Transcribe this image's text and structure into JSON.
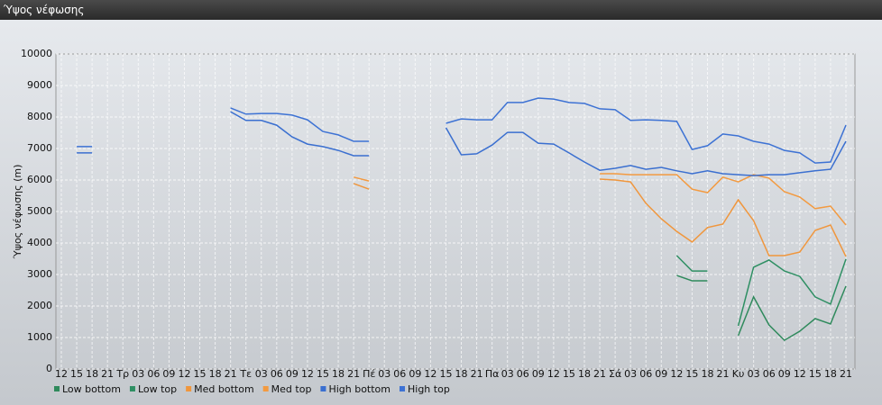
{
  "window": {
    "title": "Ύψος νέφωσης"
  },
  "chart_data": {
    "type": "line",
    "y_label": "Ύψος νέφωσης (m)",
    "categories": [
      "12",
      "15",
      "18",
      "21",
      "Τρ",
      "03",
      "06",
      "09",
      "12",
      "15",
      "18",
      "21",
      "Τε",
      "03",
      "06",
      "09",
      "12",
      "15",
      "18",
      "21",
      "Πέ",
      "03",
      "06",
      "09",
      "12",
      "15",
      "18",
      "21",
      "Πα",
      "03",
      "06",
      "09",
      "12",
      "15",
      "18",
      "21",
      "Σά",
      "03",
      "06",
      "09",
      "12",
      "15",
      "18",
      "21",
      "Κυ",
      "03",
      "06",
      "09",
      "12",
      "15",
      "18",
      "21"
    ],
    "ylim": [
      0,
      10000
    ],
    "yticks": [
      0,
      1000,
      2000,
      3000,
      4000,
      5000,
      6000,
      7000,
      8000,
      9000,
      10000
    ],
    "grid": true,
    "series": [
      {
        "name": "Low bottom",
        "color": "#2f8a5c",
        "values": [
          null,
          null,
          null,
          null,
          null,
          null,
          null,
          null,
          null,
          null,
          null,
          null,
          null,
          null,
          null,
          null,
          null,
          null,
          null,
          null,
          null,
          null,
          null,
          null,
          null,
          null,
          null,
          null,
          null,
          null,
          null,
          null,
          null,
          null,
          null,
          null,
          null,
          null,
          null,
          null,
          2970,
          2800,
          2800,
          null,
          1060,
          2290,
          1400,
          910,
          1200,
          1600,
          1430,
          2630
        ]
      },
      {
        "name": "Low top",
        "color": "#2e8f63",
        "values": [
          null,
          null,
          null,
          null,
          null,
          null,
          null,
          null,
          null,
          null,
          null,
          null,
          null,
          null,
          null,
          null,
          null,
          null,
          null,
          null,
          null,
          null,
          null,
          null,
          null,
          null,
          null,
          null,
          null,
          null,
          null,
          null,
          null,
          null,
          null,
          null,
          null,
          null,
          null,
          null,
          3600,
          3110,
          3110,
          null,
          1370,
          3230,
          3460,
          3110,
          2940,
          2290,
          2060,
          3490
        ]
      },
      {
        "name": "Med bottom",
        "color": "#f0963c",
        "values": [
          null,
          null,
          null,
          null,
          null,
          null,
          null,
          null,
          null,
          null,
          null,
          null,
          null,
          null,
          null,
          null,
          null,
          null,
          null,
          5890,
          5710,
          null,
          null,
          null,
          null,
          null,
          null,
          null,
          null,
          null,
          null,
          null,
          null,
          null,
          null,
          6030,
          6000,
          5940,
          5260,
          4770,
          4370,
          4030,
          4490,
          4600,
          5370,
          4710,
          3600,
          3600,
          3710,
          4400,
          4570,
          3570
        ]
      },
      {
        "name": "Med top",
        "color": "#f39a40",
        "values": [
          null,
          null,
          null,
          null,
          null,
          null,
          null,
          null,
          null,
          null,
          null,
          null,
          null,
          null,
          null,
          null,
          null,
          null,
          null,
          6090,
          5970,
          null,
          null,
          null,
          null,
          null,
          null,
          null,
          null,
          null,
          null,
          null,
          null,
          null,
          null,
          6200,
          6200,
          6170,
          6170,
          6170,
          6170,
          5710,
          5600,
          6090,
          5940,
          6170,
          6060,
          5630,
          5460,
          5090,
          5170,
          4570
        ]
      },
      {
        "name": "High bottom",
        "color": "#3a6fd0",
        "values": [
          null,
          6860,
          6860,
          null,
          null,
          null,
          null,
          null,
          null,
          null,
          null,
          8170,
          7890,
          7890,
          7740,
          7370,
          7140,
          7060,
          6940,
          6770,
          6770,
          null,
          null,
          null,
          null,
          7660,
          6800,
          6830,
          7110,
          7510,
          7510,
          7170,
          7140,
          6860,
          6570,
          6310,
          6370,
          6460,
          6340,
          6400,
          6290,
          6200,
          6290,
          6200,
          6170,
          6140,
          6170,
          6170,
          6230,
          6290,
          6340,
          7230
        ]
      },
      {
        "name": "High top",
        "color": "#3d72d4",
        "values": [
          null,
          7060,
          7060,
          null,
          null,
          null,
          null,
          null,
          null,
          null,
          null,
          8290,
          8090,
          8110,
          8110,
          8060,
          7910,
          7540,
          7430,
          7230,
          7230,
          null,
          null,
          null,
          null,
          7800,
          7940,
          7910,
          7910,
          8460,
          8460,
          8600,
          8570,
          8460,
          8430,
          8260,
          8230,
          7890,
          7910,
          7890,
          7860,
          6970,
          7090,
          7460,
          7400,
          7230,
          7140,
          6940,
          6860,
          6540,
          6570,
          7740
        ]
      }
    ]
  }
}
